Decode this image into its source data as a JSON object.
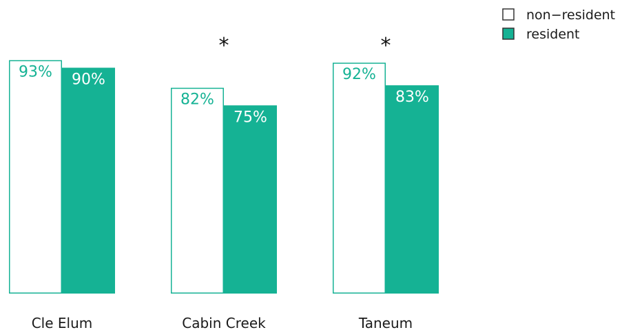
{
  "chart_data": {
    "type": "bar",
    "categories": [
      "Cle Elum",
      "Cabin Creek",
      "Taneum"
    ],
    "series": [
      {
        "name": "non−resident",
        "values": [
          93,
          82,
          92
        ],
        "labels": [
          "93%",
          "82%",
          "92%"
        ]
      },
      {
        "name": "resident",
        "values": [
          90,
          75,
          83
        ],
        "labels": [
          "90%",
          "75%",
          "83%"
        ]
      }
    ],
    "significance": [
      "",
      "*",
      "*"
    ],
    "ylim": [
      0,
      100
    ],
    "legend": "top-right",
    "grid": false,
    "xlabel": "",
    "ylabel": "",
    "title": ""
  },
  "colors": {
    "accent": "#15B294",
    "open_fill": "#ffffff",
    "text_on_fill": "#ffffff"
  }
}
